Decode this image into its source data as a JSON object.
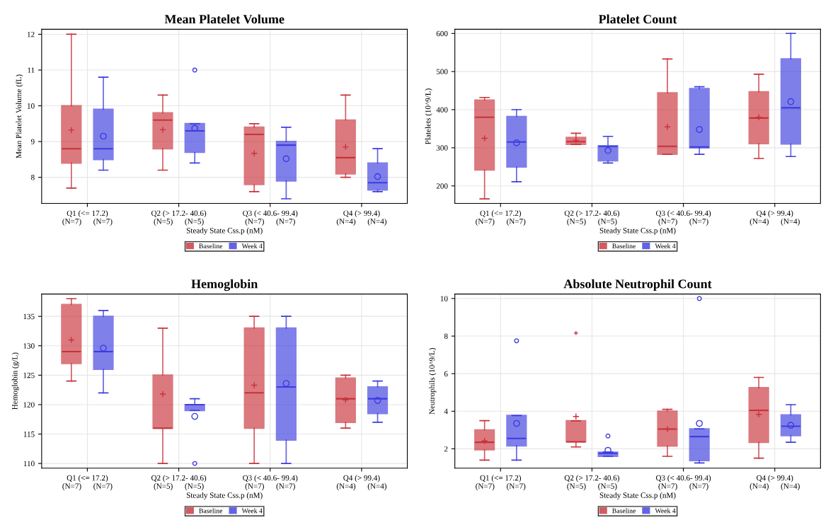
{
  "chart_data": [
    {
      "type": "box",
      "title": "Mean Platelet Volume",
      "xlabel": "Steady State Css.p (nM)",
      "ylabel": "Mean Platelet Volume (fL)",
      "categories": [
        "Q1 (<= 17.2)\n(N=7)      (N=7)",
        "Q2 (> 17.2- 40.6)\n(N=5)      (N=5)",
        "Q3 (< 40.6- 99.4)\n(N=7)      (N=7)",
        "Q4 (> 99.4)\n(N=4)      (N=4)"
      ],
      "ylim": [
        7.27,
        12.14
      ],
      "yticks": [
        8,
        9,
        10,
        11,
        12
      ],
      "grid": true,
      "legend": "bottom",
      "series": [
        {
          "name": "Baseline",
          "color": "#c8323a",
          "marker": "cross",
          "boxes": [
            {
              "low": 7.7,
              "q1": 8.4,
              "median": 8.8,
              "q3": 10.0,
              "high": 12.0,
              "mean": 9.32
            },
            {
              "low": 8.2,
              "q1": 8.8,
              "median": 9.6,
              "q3": 9.8,
              "high": 10.3,
              "mean": 9.33
            },
            {
              "low": 7.6,
              "q1": 7.8,
              "median": 9.2,
              "q3": 9.4,
              "high": 9.5,
              "mean": 8.67
            },
            {
              "low": 8.0,
              "q1": 8.1,
              "median": 8.55,
              "q3": 9.6,
              "high": 10.3,
              "mean": 8.85
            }
          ]
        },
        {
          "name": "Week 4",
          "color": "#3c3ce0",
          "marker": "circle",
          "boxes": [
            {
              "low": 8.2,
              "q1": 8.5,
              "median": 8.8,
              "q3": 9.9,
              "high": 10.8,
              "mean": 9.15
            },
            {
              "low": 8.4,
              "q1": 8.7,
              "median": 9.3,
              "q3": 9.5,
              "high": 9.5,
              "mean": 9.37,
              "outliers": [
                11.0
              ]
            },
            {
              "low": 7.4,
              "q1": 7.9,
              "median": 8.9,
              "q3": 9.0,
              "high": 9.4,
              "mean": 8.52
            },
            {
              "low": 7.6,
              "q1": 7.65,
              "median": 7.85,
              "q3": 8.4,
              "high": 8.8,
              "mean": 8.02
            }
          ]
        }
      ]
    },
    {
      "type": "box",
      "title": "Platelet Count",
      "xlabel": "Steady State Css.p (nM)",
      "ylabel": "Platelets (10^9/L)",
      "categories": [
        "Q1 (<= 17.2)\n(N=7)      (N=7)",
        "Q2 (> 17.2- 40.6)\n(N=5)      (N=5)",
        "Q3 (< 40.6- 99.4)\n(N=7)      (N=7)",
        "Q4 (> 99.4)\n(N=4)      (N=4)"
      ],
      "ylim": [
        154,
        611
      ],
      "yticks": [
        200,
        300,
        400,
        500,
        600
      ],
      "grid": true,
      "legend": "bottom",
      "series": [
        {
          "name": "Baseline",
          "color": "#c8323a",
          "marker": "cross",
          "boxes": [
            {
              "low": 166,
              "q1": 242,
              "median": 380,
              "q3": 425,
              "high": 432,
              "mean": 325
            },
            {
              "low": 309,
              "q1": 309,
              "median": 316,
              "q3": 327,
              "high": 338,
              "mean": 320
            },
            {
              "low": 283,
              "q1": 283,
              "median": 304,
              "q3": 444,
              "high": 533,
              "mean": 355
            },
            {
              "low": 272,
              "q1": 311,
              "median": 378,
              "q3": 447,
              "high": 493,
              "mean": 380
            }
          ]
        },
        {
          "name": "Week 4",
          "color": "#3c3ce0",
          "marker": "circle",
          "boxes": [
            {
              "low": 211,
              "q1": 250,
              "median": 315,
              "q3": 382,
              "high": 400,
              "mean": 313
            },
            {
              "low": 260,
              "q1": 266,
              "median": 304,
              "q3": 305,
              "high": 330,
              "mean": 293
            },
            {
              "low": 283,
              "q1": 300,
              "median": 302,
              "q3": 455,
              "high": 460,
              "mean": 348
            },
            {
              "low": 277,
              "q1": 310,
              "median": 405,
              "q3": 533,
              "high": 600,
              "mean": 421
            }
          ]
        }
      ]
    },
    {
      "type": "box",
      "title": "Hemoglobin",
      "xlabel": "Steady State Css.p (nM)",
      "ylabel": "Hemoglobin (g/L)",
      "categories": [
        "Q1 (<= 17.2)\n(N=7)      (N=7)",
        "Q2 (> 17.2- 40.6)\n(N=5)      (N=5)",
        "Q3 (< 40.6- 99.4)\n(N=7)      (N=7)",
        "Q4 (> 99.4)\n(N=4)      (N=4)"
      ],
      "ylim": [
        109.2,
        138.8
      ],
      "yticks": [
        110,
        115,
        120,
        125,
        130,
        135
      ],
      "grid": true,
      "legend": "bottom",
      "series": [
        {
          "name": "Baseline",
          "color": "#c8323a",
          "marker": "cross",
          "boxes": [
            {
              "low": 124,
              "q1": 127,
              "median": 129,
              "q3": 137,
              "high": 138,
              "mean": 131
            },
            {
              "low": 110,
              "q1": 116,
              "median": 116,
              "q3": 125,
              "high": 133,
              "mean": 121.8
            },
            {
              "low": 110,
              "q1": 116,
              "median": 122,
              "q3": 133,
              "high": 135,
              "mean": 123.3
            },
            {
              "low": 116,
              "q1": 117,
              "median": 121,
              "q3": 124.5,
              "high": 125,
              "mean": 120.8
            }
          ]
        },
        {
          "name": "Week 4",
          "color": "#3c3ce0",
          "marker": "circle",
          "boxes": [
            {
              "low": 122,
              "q1": 126,
              "median": 129,
              "q3": 135,
              "high": 136,
              "mean": 129.6
            },
            {
              "low": 119,
              "q1": 119,
              "median": 120,
              "q3": 120,
              "high": 121,
              "mean": 118,
              "outliers": [
                110
              ]
            },
            {
              "low": 110,
              "q1": 114,
              "median": 123,
              "q3": 133,
              "high": 135,
              "mean": 123.6
            },
            {
              "low": 117,
              "q1": 118.5,
              "median": 121,
              "q3": 123,
              "high": 124,
              "mean": 120.7
            }
          ]
        }
      ]
    },
    {
      "type": "box",
      "title": "Absolute Neutrophil Count",
      "xlabel": "Steady State Css.p (nM)",
      "ylabel": "Neutrophils (10^9/L)",
      "categories": [
        "Q1 (<= 17.2)\n(N=7)      (N=7)",
        "Q2 (> 17.2- 40.6)\n(N=5)      (N=5)",
        "Q3 (< 40.6- 99.4)\n(N=7)      (N=7)",
        "Q4 (> 99.4)\n(N=4)      (N=4)"
      ],
      "ylim": [
        0.97,
        10.24
      ],
      "yticks": [
        2,
        4,
        6,
        8,
        10
      ],
      "grid": true,
      "legend": "bottom",
      "series": [
        {
          "name": "Baseline",
          "color": "#c8323a",
          "marker": "cross",
          "boxes": [
            {
              "low": 1.4,
              "q1": 1.95,
              "median": 2.35,
              "q3": 3.0,
              "high": 3.5,
              "mean": 2.42
            },
            {
              "low": 2.1,
              "q1": 2.37,
              "median": 2.37,
              "q3": 3.49,
              "high": 3.49,
              "mean": 3.72,
              "outliers": [
                8.16
              ]
            },
            {
              "low": 1.6,
              "q1": 2.15,
              "median": 3.05,
              "q3": 4.0,
              "high": 4.1,
              "mean": 3.05
            },
            {
              "low": 1.5,
              "q1": 2.35,
              "median": 4.05,
              "q3": 5.25,
              "high": 5.8,
              "mean": 3.83
            }
          ]
        },
        {
          "name": "Week 4",
          "color": "#3c3ce0",
          "marker": "circle",
          "boxes": [
            {
              "low": 1.4,
              "q1": 2.16,
              "median": 2.55,
              "q3": 3.77,
              "high": 3.77,
              "mean": 3.35,
              "outliers": [
                7.75
              ]
            },
            {
              "low": 1.6,
              "q1": 1.6,
              "median": 1.76,
              "q3": 1.82,
              "high": 1.82,
              "mean": 1.92,
              "outliers": [
                2.68
              ]
            },
            {
              "low": 1.25,
              "q1": 1.38,
              "median": 2.65,
              "q3": 3.06,
              "high": 3.06,
              "mean": 3.35,
              "outliers": [
                10.0
              ]
            },
            {
              "low": 2.35,
              "q1": 2.7,
              "median": 3.2,
              "q3": 3.8,
              "high": 4.35,
              "mean": 3.25
            }
          ]
        }
      ]
    }
  ]
}
